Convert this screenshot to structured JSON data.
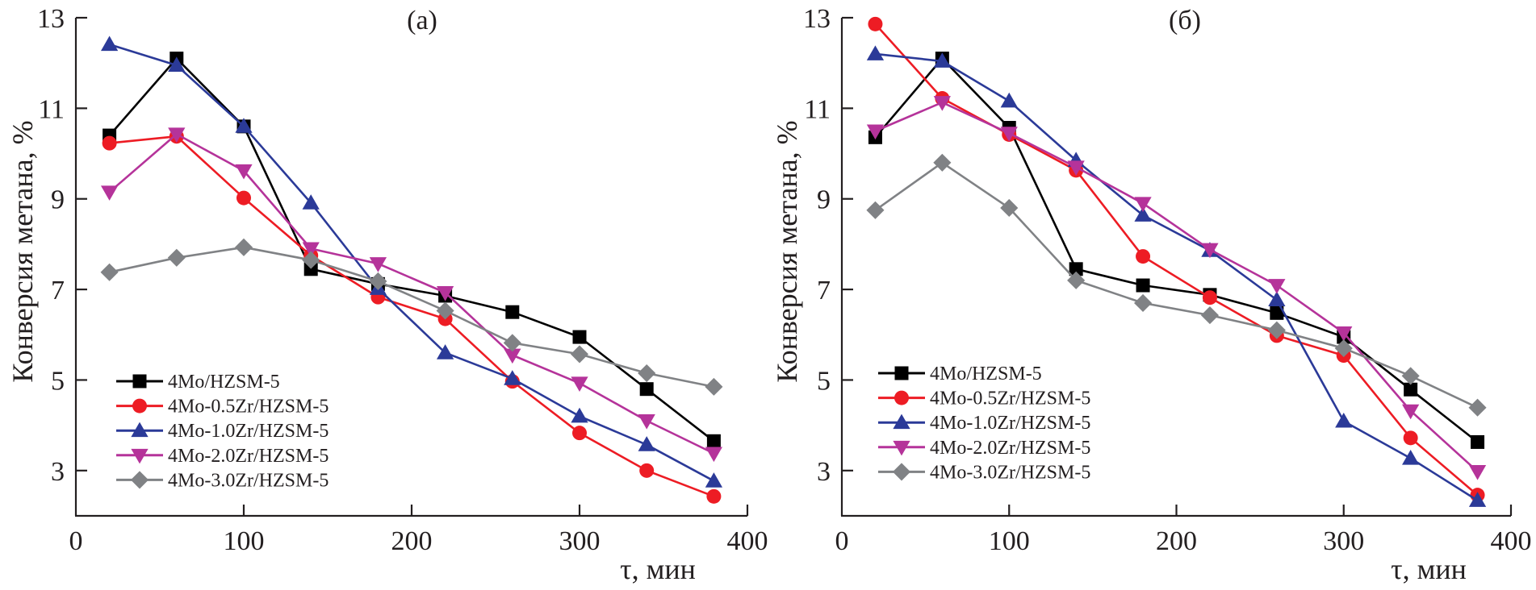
{
  "chart_data": [
    {
      "type": "line",
      "title": "(a)",
      "xlabel": "τ, мин",
      "ylabel": "Конверсия метана, %",
      "xlim": [
        0,
        400
      ],
      "ylim": [
        2,
        13
      ],
      "xticks": [
        0,
        100,
        200,
        300,
        400
      ],
      "yticks": [
        3,
        5,
        7,
        9,
        11,
        13
      ],
      "grid": false,
      "legend_position": "lower-left",
      "x": [
        20,
        60,
        100,
        140,
        180,
        220,
        260,
        300,
        340,
        380
      ],
      "series": [
        {
          "name": "4Mo/HZSM-5",
          "color": "#000000",
          "marker": "square",
          "values": [
            10.4,
            12.1,
            10.6,
            7.45,
            7.12,
            6.86,
            6.5,
            5.95,
            4.8,
            3.65
          ]
        },
        {
          "name": "4Mo-0.5Zr/HZSM-5",
          "color": "#ED1C24",
          "marker": "circle",
          "values": [
            10.23,
            10.38,
            9.02,
            7.75,
            6.83,
            6.35,
            4.97,
            3.83,
            3.0,
            2.43
          ]
        },
        {
          "name": "4Mo-1.0Zr/HZSM-5",
          "color": "#2B3A98",
          "marker": "triangle-up",
          "values": [
            12.41,
            11.95,
            10.6,
            8.91,
            7.02,
            5.6,
            5.03,
            4.2,
            3.57,
            2.77
          ]
        },
        {
          "name": "4Mo-2.0Zr/HZSM-5",
          "color": "#B5339A",
          "marker": "triangle-down",
          "values": [
            9.15,
            10.43,
            9.62,
            7.9,
            7.57,
            6.93,
            5.55,
            4.93,
            4.1,
            3.38
          ]
        },
        {
          "name": "4Mo-3.0Zr/HZSM-5",
          "color": "#808285",
          "marker": "diamond",
          "values": [
            7.38,
            7.7,
            7.93,
            7.65,
            7.18,
            6.53,
            5.82,
            5.57,
            5.15,
            4.85
          ]
        }
      ]
    },
    {
      "type": "line",
      "title": "(б)",
      "xlabel": "τ, мин",
      "ylabel": "Конверсия метана, %",
      "xlim": [
        0,
        400
      ],
      "ylim": [
        2,
        13
      ],
      "xticks": [
        0,
        100,
        200,
        300,
        400
      ],
      "yticks": [
        3,
        5,
        7,
        9,
        11,
        13
      ],
      "grid": false,
      "legend_position": "lower-left",
      "x": [
        20,
        60,
        100,
        140,
        180,
        220,
        260,
        300,
        340,
        380
      ],
      "series": [
        {
          "name": "4Mo/HZSM-5",
          "color": "#000000",
          "marker": "square",
          "values": [
            10.36,
            12.1,
            10.57,
            7.45,
            7.09,
            6.88,
            6.48,
            5.95,
            4.79,
            3.63
          ]
        },
        {
          "name": "4Mo-0.5Zr/HZSM-5",
          "color": "#ED1C24",
          "marker": "circle",
          "values": [
            12.86,
            11.22,
            10.42,
            9.63,
            7.73,
            6.82,
            5.98,
            5.54,
            3.72,
            2.46
          ]
        },
        {
          "name": "4Mo-1.0Zr/HZSM-5",
          "color": "#2B3A98",
          "marker": "triangle-up",
          "values": [
            12.2,
            12.04,
            11.16,
            9.85,
            8.64,
            7.86,
            6.77,
            4.09,
            3.27,
            2.34
          ]
        },
        {
          "name": "4Mo-2.0Zr/HZSM-5",
          "color": "#B5339A",
          "marker": "triangle-down",
          "values": [
            10.5,
            11.13,
            10.45,
            9.7,
            8.9,
            7.88,
            7.09,
            6.04,
            4.32,
            2.98
          ]
        },
        {
          "name": "4Mo-3.0Zr/HZSM-5",
          "color": "#808285",
          "marker": "diamond",
          "values": [
            8.75,
            9.8,
            8.8,
            7.2,
            6.7,
            6.43,
            6.1,
            5.7,
            5.09,
            4.39
          ]
        }
      ]
    }
  ]
}
